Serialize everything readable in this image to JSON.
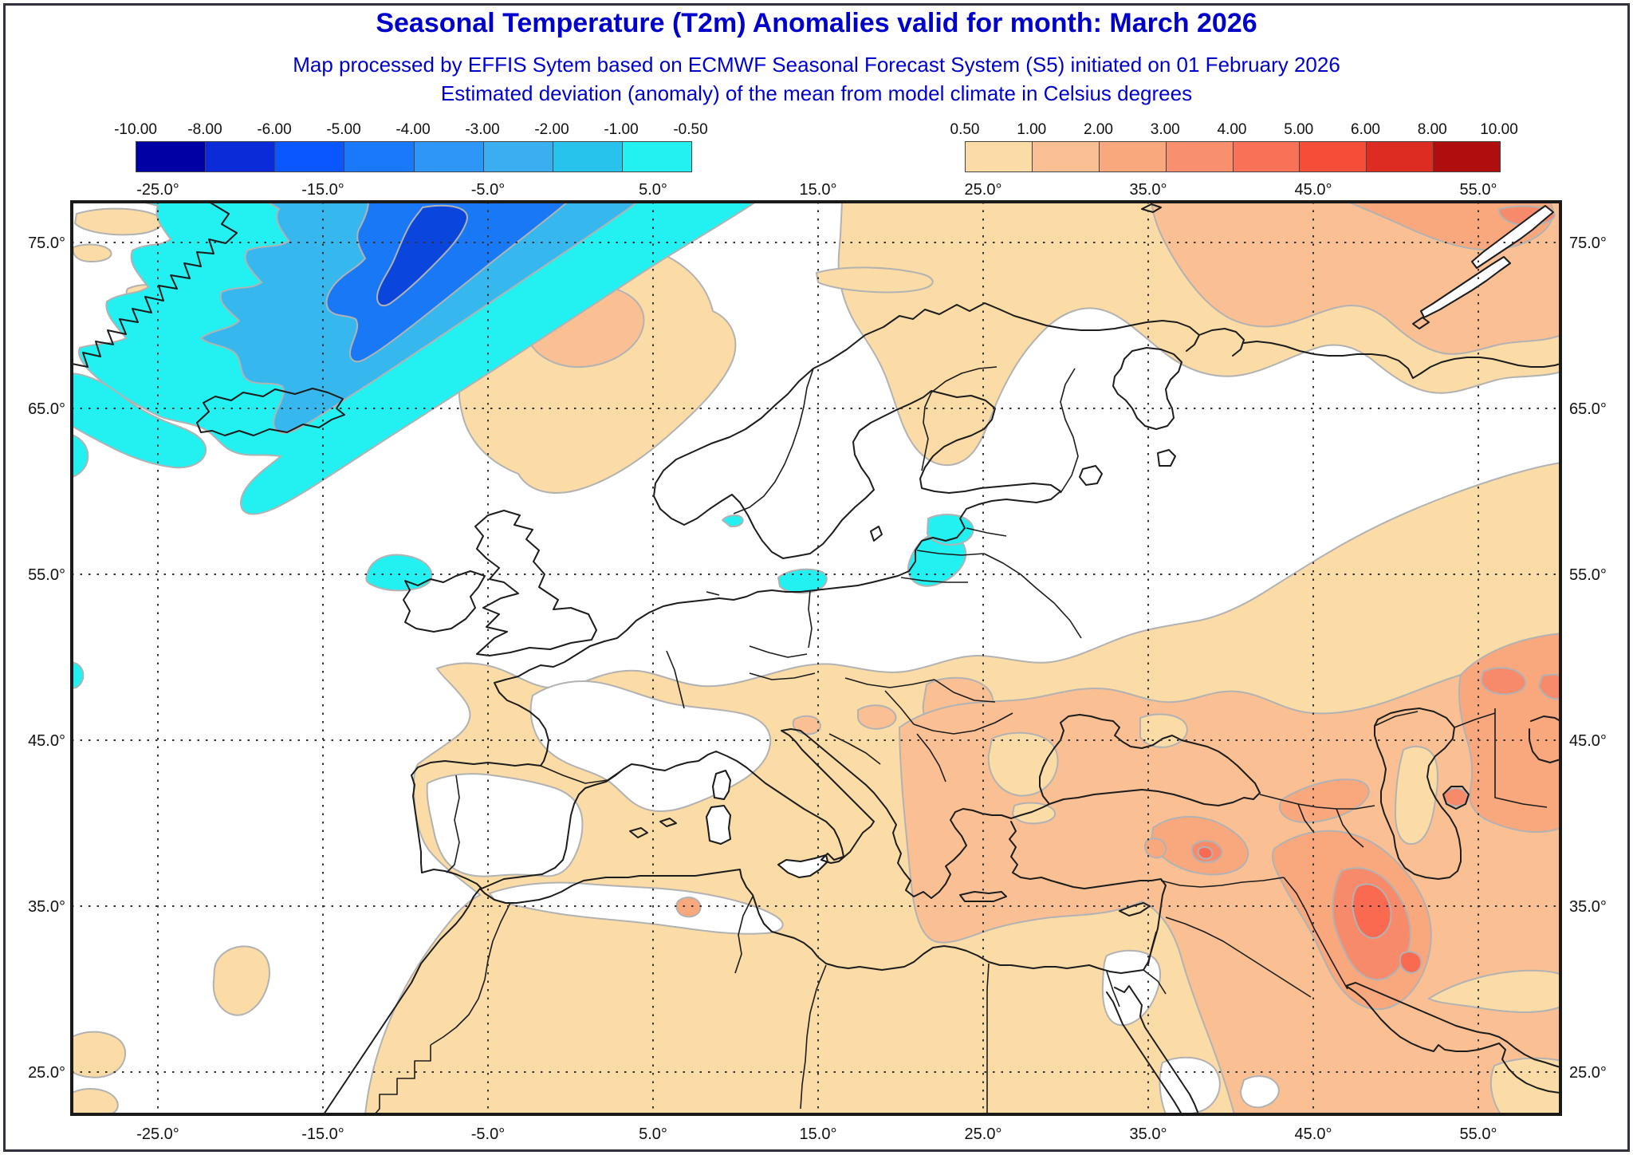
{
  "title": "Seasonal Temperature (T2m) Anomalies valid for month: March 2026",
  "subtitle1": "Map processed by EFFIS Sytem based on ECMWF Seasonal Forecast System (S5) initiated on 01 February 2026",
  "subtitle2": "Estimated deviation (anomaly) of the mean from model climate in Celsius degrees",
  "header_text_color": "#0000cd",
  "legend": {
    "negative": {
      "labels": [
        "-10.00",
        "-8.00",
        "-6.00",
        "-5.00",
        "-4.00",
        "-3.00",
        "-2.00",
        "-1.00",
        "-0.50"
      ],
      "colors": [
        "#0000a4",
        "#0b2ad8",
        "#0a57ff",
        "#1a78fa",
        "#2e96f6",
        "#3baef2",
        "#27c3ec",
        "#23f0f0"
      ]
    },
    "positive": {
      "labels": [
        "0.50",
        "1.00",
        "2.00",
        "3.00",
        "4.00",
        "5.00",
        "6.00",
        "8.00",
        "10.00"
      ],
      "colors": [
        "#fbdca6",
        "#fac093",
        "#f9a87e",
        "#f89070",
        "#f97258",
        "#f44e38",
        "#dd2c22",
        "#b00e0e"
      ]
    }
  },
  "map": {
    "top_labels": [
      "-25.0°",
      "-15.0°",
      "-5.0°",
      "5.0°",
      "15.0°",
      "25.0°",
      "35.0°",
      "45.0°",
      "55.0°"
    ],
    "bottom_labels": [
      "-25.0°",
      "-15.0°",
      "-5.0°",
      "5.0°",
      "15.0°",
      "25.0°",
      "35.0°",
      "45.0°",
      "55.0°"
    ],
    "left_labels": [
      "75.0°",
      "65.0°",
      "55.0°",
      "45.0°",
      "35.0°",
      "25.0°"
    ],
    "right_labels": [
      "75.0°",
      "65.0°",
      "55.0°",
      "45.0°",
      "35.0°",
      "25.0°"
    ],
    "palette": {
      "anom_m4": "#0a46dc",
      "anom_m3": "#1878f5",
      "anom_m2": "#36b8ee",
      "anom_m1": "#23f0f0",
      "anom_p05": "#fbdca6",
      "anom_p1": "#fac093",
      "anom_p2": "#f9a87e",
      "anom_p3": "#f88a6c",
      "anom_p4": "#f96a50",
      "land_white": "#ffffff",
      "contour_outline": "#b2b2b2",
      "coastline": "#1c1c1c",
      "grid_color": "#333333"
    }
  }
}
